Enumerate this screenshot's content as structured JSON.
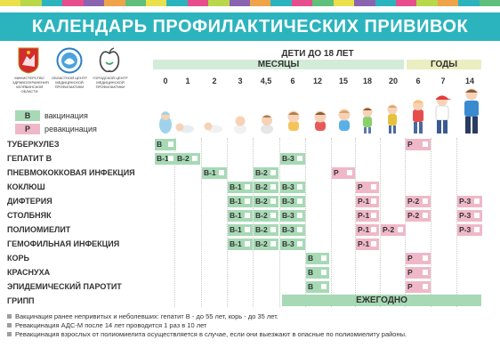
{
  "title": "КАЛЕНДАРЬ ПРОФИЛАКТИЧЕСКИХ ПРИВИВОК",
  "colors": {
    "teal": "#2cb4be",
    "vaccination": "#a7d9b5",
    "revaccination": "#efb8c8",
    "band_green": "#d3ecd8",
    "band_yellow": "#eaeec0",
    "row_blue": "#dcedf4",
    "row_white": "#f6fafb",
    "stripe": [
      "#e9e04c",
      "#b8d84a",
      "#2cb4be",
      "#e64e8c",
      "#8a64b0",
      "#f0a44a",
      "#5ec07a",
      "#e9e04c",
      "#2cb4be",
      "#e64e8c",
      "#b8d84a",
      "#8a64b0",
      "#f0a44a",
      "#2cb4be",
      "#e64e8c",
      "#5ec07a",
      "#e9e04c",
      "#8a64b0",
      "#2cb4be",
      "#e64e8c",
      "#b8d84a",
      "#f0a44a",
      "#2cb4be",
      "#5ec07a"
    ]
  },
  "logos": [
    {
      "icon": "chelyabinsk-coat-of-arms-icon",
      "text": "МИНИСТЕРСТВО\nЗДРАВООХРАНЕНИЯ\nЧЕЛЯБИНСКОЙ ОБЛАСТИ"
    },
    {
      "icon": "regional-prevention-center-icon",
      "text": "ОБЛАСТНОЙ ЦЕНТР\nМЕДИЦИНСКОЙ\nПРОФИЛАКТИКИ"
    },
    {
      "icon": "city-prevention-center-apple-icon",
      "text": "ГОРОДСКОЙ ЦЕНТР\nМЕДИЦИНСКОЙ\nПРОФИЛАКТИКИ"
    }
  ],
  "header": {
    "children_label": "ДЕТИ ДО 18 ЛЕТ",
    "months_label": "МЕСЯЦЫ",
    "years_label": "ГОДЫ"
  },
  "ages": [
    "0",
    "1",
    "2",
    "3",
    "4,5",
    "6",
    "12",
    "15",
    "18",
    "20",
    "6",
    "7",
    "14"
  ],
  "legend": [
    {
      "code": "В",
      "label": "вакцинация",
      "kind": "v"
    },
    {
      "code": "Р",
      "label": "ревакцинация",
      "kind": "r"
    }
  ],
  "rows": [
    {
      "name": "ТУБЕРКУЛЕЗ",
      "cells": [
        {
          "col": 0,
          "label": "В",
          "kind": "v"
        },
        {
          "col": 10,
          "label": "Р",
          "kind": "r"
        }
      ]
    },
    {
      "name": "ГЕПАТИТ В",
      "cells": [
        {
          "col": 0,
          "label": "В-1",
          "kind": "v"
        },
        {
          "col": 1,
          "label": "В-2",
          "kind": "v"
        },
        {
          "col": 5,
          "label": "В-3",
          "kind": "v"
        }
      ]
    },
    {
      "name": "ПНЕВМОКОККОВАЯ ИНФЕКЦИЯ",
      "cells": [
        {
          "col": 2,
          "label": "В-1",
          "kind": "v"
        },
        {
          "col": 4,
          "label": "В-2",
          "kind": "v"
        },
        {
          "col": 7,
          "label": "Р",
          "kind": "r"
        }
      ]
    },
    {
      "name": "КОКЛЮШ",
      "cells": [
        {
          "col": 3,
          "label": "В-1",
          "kind": "v"
        },
        {
          "col": 4,
          "label": "В-2",
          "kind": "v"
        },
        {
          "col": 5,
          "label": "В-3",
          "kind": "v"
        },
        {
          "col": 8,
          "label": "Р",
          "kind": "r"
        }
      ]
    },
    {
      "name": "ДИФТЕРИЯ",
      "cells": [
        {
          "col": 3,
          "label": "В-1",
          "kind": "v"
        },
        {
          "col": 4,
          "label": "В-2",
          "kind": "v"
        },
        {
          "col": 5,
          "label": "В-3",
          "kind": "v"
        },
        {
          "col": 8,
          "label": "Р-1",
          "kind": "r"
        },
        {
          "col": 10,
          "label": "Р-2",
          "kind": "r"
        },
        {
          "col": 12,
          "label": "Р-3",
          "kind": "r"
        }
      ]
    },
    {
      "name": "СТОЛБНЯК",
      "cells": [
        {
          "col": 3,
          "label": "В-1",
          "kind": "v"
        },
        {
          "col": 4,
          "label": "В-2",
          "kind": "v"
        },
        {
          "col": 5,
          "label": "В-3",
          "kind": "v"
        },
        {
          "col": 8,
          "label": "Р-1",
          "kind": "r"
        },
        {
          "col": 10,
          "label": "Р-2",
          "kind": "r"
        },
        {
          "col": 12,
          "label": "Р-3",
          "kind": "r"
        }
      ]
    },
    {
      "name": "ПОЛИОМИЕЛИТ",
      "cells": [
        {
          "col": 3,
          "label": "В-1",
          "kind": "v"
        },
        {
          "col": 4,
          "label": "В-2",
          "kind": "v"
        },
        {
          "col": 5,
          "label": "В-3",
          "kind": "v"
        },
        {
          "col": 8,
          "label": "Р-1",
          "kind": "r"
        },
        {
          "col": 9,
          "label": "Р-2",
          "kind": "r"
        },
        {
          "col": 12,
          "label": "Р-3",
          "kind": "r"
        }
      ]
    },
    {
      "name": "ГЕМОФИЛЬНАЯ ИНФЕКЦИЯ",
      "cells": [
        {
          "col": 3,
          "label": "В-1",
          "kind": "v"
        },
        {
          "col": 4,
          "label": "В-2",
          "kind": "v"
        },
        {
          "col": 5,
          "label": "В-3",
          "kind": "v"
        },
        {
          "col": 8,
          "label": "Р-1",
          "kind": "r"
        }
      ]
    },
    {
      "name": "КОРЬ",
      "cells": [
        {
          "col": 6,
          "label": "В",
          "kind": "v"
        },
        {
          "col": 10,
          "label": "Р",
          "kind": "r"
        }
      ]
    },
    {
      "name": "КРАСНУХА",
      "cells": [
        {
          "col": 6,
          "label": "В",
          "kind": "v"
        },
        {
          "col": 10,
          "label": "Р",
          "kind": "r"
        }
      ]
    },
    {
      "name": "ЭПИДЕМИЧЕСКИЙ ПАРОТИТ",
      "cells": [
        {
          "col": 6,
          "label": "В",
          "kind": "v"
        },
        {
          "col": 10,
          "label": "Р",
          "kind": "r"
        }
      ]
    },
    {
      "name": "ГРИПП",
      "cells": []
    }
  ],
  "flu_annual": "ЕЖЕГОДНО",
  "notes": [
    "Вакцинация ранее непривитых и неболевших: гепатит В - до 55 лет, корь - до 35 лет.",
    "Ревакцинация АДС-М после 14 лет проводится 1 раз в 10 лет",
    "Ревакцинация взрослых от полиомиелита осуществляется в случае, если они выезжают в опасные по полиомиелиту районы."
  ]
}
